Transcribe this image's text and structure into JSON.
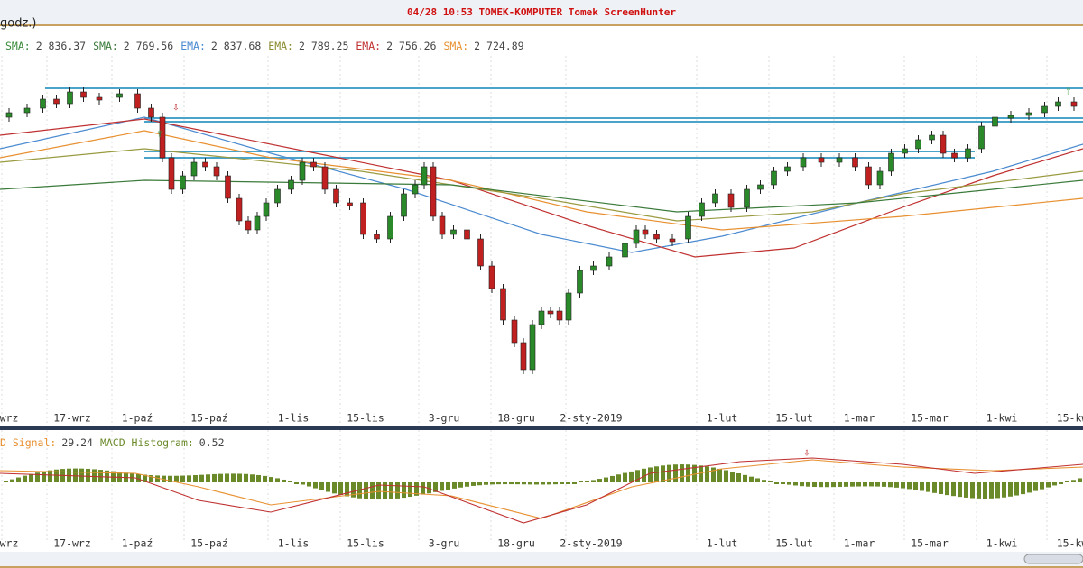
{
  "header": {
    "title": "04/28  10:53  TOMEK-KOMPUTER  Tomek  ScreenHunter"
  },
  "price_panel": {
    "label": "godz.)",
    "indicators": [
      {
        "name": "SMA:",
        "value": "2 836.37"
      },
      {
        "name": "SMA:",
        "value": "2 769.56"
      },
      {
        "name": "EMA:",
        "value": "2 837.68"
      },
      {
        "name": "EMA:",
        "value": "2 789.25"
      },
      {
        "name": "EMA:",
        "value": "2 756.26"
      },
      {
        "name": "SMA:",
        "value": "2 724.89"
      }
    ]
  },
  "x_axis_labels": [
    "wrz",
    "17-wrz",
    "1-paź",
    "15-paź",
    "1-lis",
    "15-lis",
    "3-gru",
    "18-gru",
    "2-sty-2019",
    "1-lut",
    "15-lut",
    "1-mar",
    "15-mar",
    "1-kwi",
    "15-kw"
  ],
  "macd_panel": {
    "legend": [
      {
        "name": "D Signal:",
        "value": "29.24"
      },
      {
        "name": "MACD Histogram:",
        "value": "0.52"
      }
    ]
  }
}
